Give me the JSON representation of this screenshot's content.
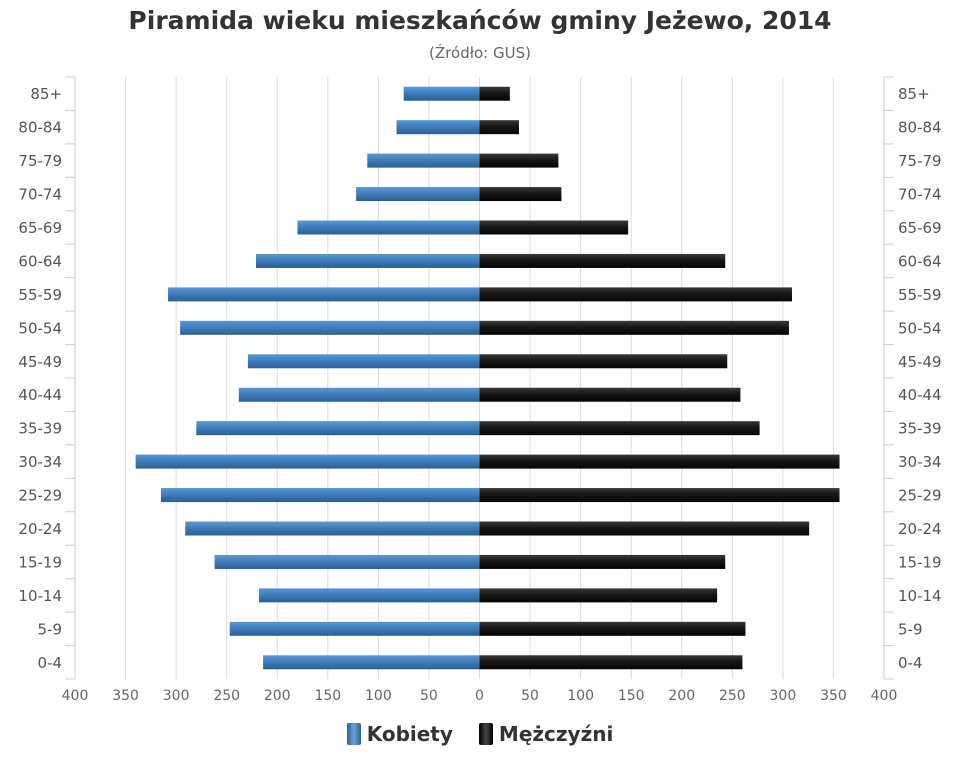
{
  "chart_data": {
    "type": "bar",
    "orientation": "horizontal",
    "title": "Piramida wieku mieszkańców gminy Jeżewo, 2014",
    "subtitle": "(Źródło: GUS)",
    "categories": [
      "85+",
      "80-84",
      "75-79",
      "70-74",
      "65-69",
      "60-64",
      "55-59",
      "50-54",
      "45-49",
      "40-44",
      "35-39",
      "30-34",
      "25-29",
      "20-24",
      "15-19",
      "10-14",
      "5-9",
      "0-4"
    ],
    "series": [
      {
        "name": "Kobiety",
        "color": "#3a78b6",
        "values": [
          75,
          82,
          111,
          122,
          180,
          221,
          308,
          296,
          229,
          238,
          280,
          340,
          315,
          291,
          262,
          218,
          247,
          214
        ]
      },
      {
        "name": "Mężczyźni",
        "color": "#1a1a1a",
        "values": [
          30,
          39,
          78,
          81,
          147,
          243,
          309,
          306,
          245,
          258,
          277,
          356,
          356,
          326,
          243,
          235,
          263,
          260
        ]
      }
    ],
    "xlim": [
      -400,
      400
    ],
    "xticks": [
      "400",
      "350",
      "300",
      "250",
      "200",
      "150",
      "100",
      "50",
      "0",
      "50",
      "100",
      "150",
      "200",
      "250",
      "300",
      "350",
      "400"
    ],
    "grid": true,
    "legend_position": "bottom"
  }
}
